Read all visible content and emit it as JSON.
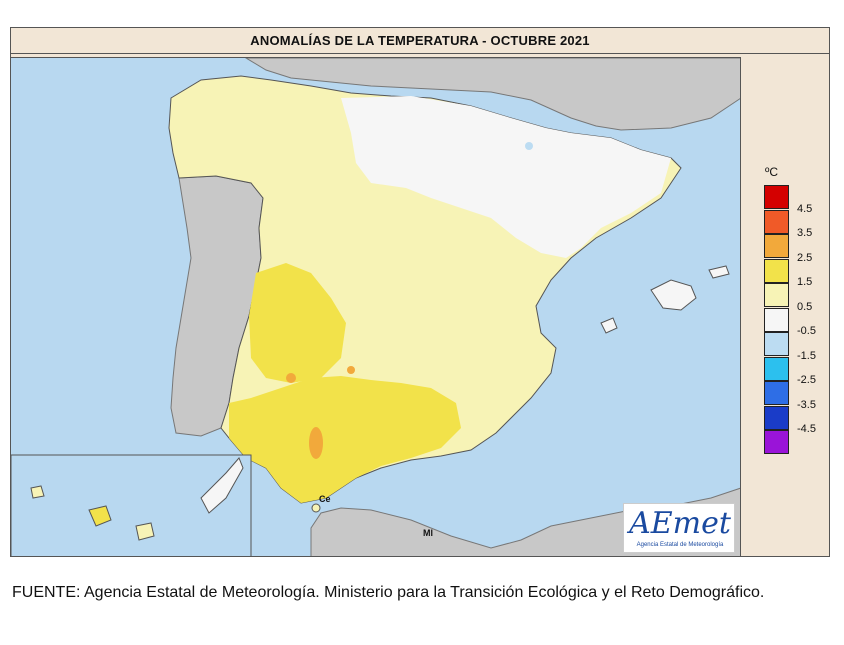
{
  "title": "ANOMALÍAS DE LA TEMPERATURA - OCTUBRE 2021",
  "legend": {
    "unit": "ºC",
    "colors": [
      "#d40000",
      "#f05a28",
      "#f2a93b",
      "#f2e24a",
      "#f7f3b6",
      "#f6f6f6",
      "#bcdcf2",
      "#2cc0ee",
      "#2e6ee6",
      "#1a3cc8",
      "#9a14d8"
    ],
    "ticks": [
      "4.5",
      "3.5",
      "2.5",
      "1.5",
      "0.5",
      "-0.5",
      "-1.5",
      "-2.5",
      "-3.5",
      "-4.5"
    ]
  },
  "labels": {
    "ceuta": "Ce",
    "melilla": "Ml"
  },
  "logo": {
    "name": "AEmet",
    "subtitle": "Agencia Estatal de Meteorología"
  },
  "source": "FUENTE: Agencia Estatal de Meteorología. Ministerio para la Transición Ecológica y el Reto Demográfico."
}
